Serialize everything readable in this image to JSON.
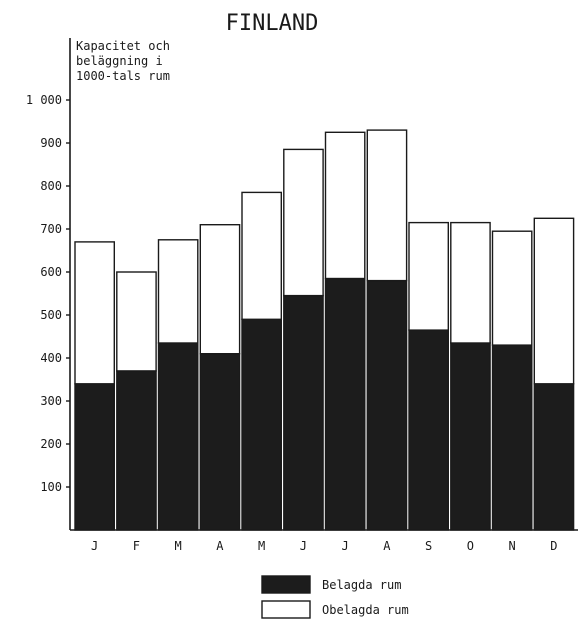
{
  "chart_data": {
    "type": "bar",
    "stacked": true,
    "title": "FINLAND",
    "ylabel": [
      "Kapacitet och",
      "beläggning i",
      "1000-tals rum"
    ],
    "ylim": [
      0,
      1000
    ],
    "yticks": [
      {
        "value": 100,
        "label": "100"
      },
      {
        "value": 200,
        "label": "200"
      },
      {
        "value": 300,
        "label": "300"
      },
      {
        "value": 400,
        "label": "400"
      },
      {
        "value": 500,
        "label": "500"
      },
      {
        "value": 600,
        "label": "600"
      },
      {
        "value": 700,
        "label": "700"
      },
      {
        "value": 800,
        "label": "800"
      },
      {
        "value": 900,
        "label": "900"
      },
      {
        "value": 1000,
        "label": "1 000"
      }
    ],
    "categories": [
      "J",
      "F",
      "M",
      "A",
      "M",
      "J",
      "J",
      "A",
      "S",
      "O",
      "N",
      "D"
    ],
    "series": [
      {
        "name": "Belagda rum",
        "color": "#1c1c1c",
        "values": [
          340,
          370,
          435,
          410,
          490,
          545,
          585,
          580,
          465,
          435,
          430,
          340
        ]
      },
      {
        "name": "Obelagda rum",
        "color": "#ffffff",
        "values": [
          330,
          230,
          240,
          300,
          295,
          340,
          340,
          350,
          250,
          280,
          265,
          385
        ]
      }
    ],
    "legend_position": "bottom-center",
    "grid": false
  }
}
